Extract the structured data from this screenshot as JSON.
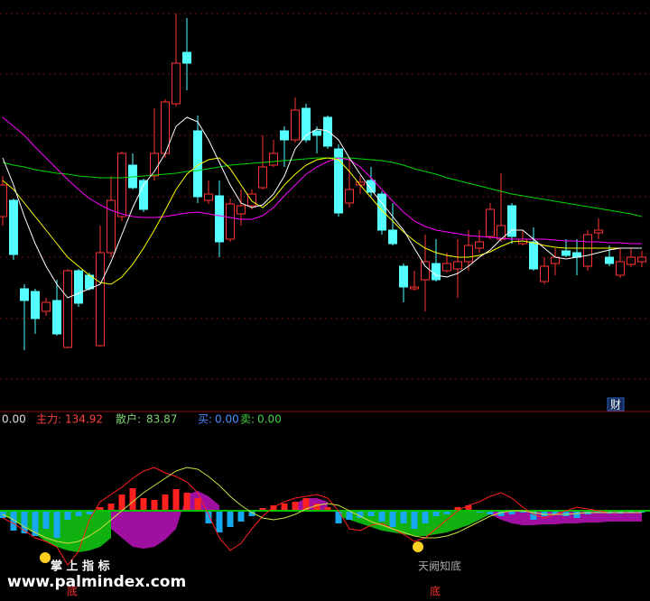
{
  "chart_data": [
    {
      "type": "candlestick",
      "ylim": [
        0,
        455
      ],
      "up_color": "#ff3232",
      "down_color": "#54ffff",
      "open": [
        215,
        233,
        135,
        132,
        110,
        122,
        70,
        155,
        150,
        72,
        175,
        215,
        272,
        255,
        260,
        285,
        340,
        397,
        310,
        233,
        238,
        190,
        218,
        227,
        247,
        272,
        310,
        300,
        335,
        310,
        325,
        290,
        230,
        250,
        255,
        240,
        200,
        160,
        135,
        145,
        163,
        155,
        157,
        165,
        180,
        193,
        190,
        227,
        185,
        187,
        143,
        163,
        177,
        175,
        160,
        197,
        170,
        150,
        162,
        165
      ],
      "high": [
        260,
        235,
        140,
        135,
        125,
        145,
        157,
        157,
        153,
        205,
        260,
        287,
        285,
        257,
        335,
        345,
        440,
        435,
        327,
        255,
        255,
        235,
        245,
        245,
        305,
        300,
        315,
        347,
        340,
        315,
        327,
        295,
        280,
        260,
        270,
        243,
        230,
        163,
        155,
        195,
        190,
        175,
        190,
        200,
        200,
        230,
        263,
        230,
        200,
        203,
        170,
        180,
        190,
        190,
        200,
        213,
        183,
        180,
        180,
        177
      ],
      "low": [
        205,
        167,
        67,
        85,
        105,
        83,
        69,
        115,
        133,
        71,
        170,
        210,
        245,
        220,
        255,
        280,
        337,
        355,
        230,
        229,
        170,
        187,
        205,
        223,
        245,
        270,
        270,
        297,
        297,
        285,
        290,
        215,
        225,
        240,
        237,
        195,
        183,
        120,
        133,
        110,
        143,
        153,
        125,
        155,
        175,
        190,
        187,
        185,
        183,
        155,
        140,
        150,
        170,
        150,
        155,
        190,
        160,
        147,
        159,
        159
      ],
      "close": [
        250,
        173,
        122,
        102,
        120,
        85,
        155,
        119,
        135,
        175,
        233,
        285,
        247,
        223,
        285,
        342,
        385,
        385,
        237,
        240,
        187,
        229,
        227,
        240,
        270,
        285,
        300,
        333,
        300,
        305,
        293,
        219,
        245,
        253,
        242,
        200,
        185,
        137,
        137,
        165,
        145,
        163,
        165,
        183,
        187,
        223,
        205,
        193,
        190,
        157,
        160,
        170,
        172,
        170,
        195,
        200,
        163,
        165,
        170,
        170
      ],
      "series": [
        {
          "color": "#00d800",
          "values": [
            275,
            272,
            270,
            267,
            265,
            263,
            262,
            260,
            259,
            258,
            258,
            258,
            259,
            260,
            261,
            262,
            263,
            265,
            266,
            268,
            270,
            272,
            273,
            274,
            275,
            276,
            277,
            278,
            279,
            280,
            280,
            280,
            280,
            279,
            278,
            277,
            275,
            272,
            268,
            265,
            262,
            258,
            255,
            252,
            249,
            246,
            243,
            240,
            238,
            236,
            234,
            232,
            230,
            228,
            226,
            224,
            222,
            220,
            218,
            215
          ]
        },
        {
          "color": "#ff00ff",
          "values": [
            325,
            315,
            305,
            292,
            280,
            268,
            256,
            245,
            235,
            228,
            222,
            218,
            215,
            214,
            214,
            215,
            217,
            219,
            220,
            218,
            216,
            214,
            212,
            212,
            216,
            225,
            238,
            250,
            262,
            270,
            276,
            280,
            278,
            270,
            258,
            245,
            232,
            220,
            210,
            204,
            200,
            198,
            196,
            194,
            193,
            192,
            191,
            190,
            190,
            190,
            190,
            189,
            188,
            188,
            187,
            187,
            186,
            186,
            185,
            185
          ]
        },
        {
          "color": "#ffff00",
          "values": [
            255,
            245,
            230,
            215,
            200,
            185,
            170,
            160,
            150,
            142,
            140,
            148,
            162,
            180,
            200,
            222,
            245,
            262,
            272,
            278,
            280,
            268,
            250,
            232,
            225,
            235,
            250,
            262,
            272,
            278,
            280,
            278,
            265,
            250,
            236,
            222,
            210,
            198,
            188,
            180,
            175,
            172,
            170,
            170,
            172,
            176,
            182,
            187,
            188,
            186,
            183,
            181,
            180,
            180,
            180,
            180,
            180,
            180,
            180,
            180
          ]
        },
        {
          "color": "#ffffff",
          "values": [
            280,
            250,
            215,
            185,
            160,
            140,
            125,
            130,
            135,
            140,
            165,
            195,
            225,
            250,
            265,
            285,
            315,
            325,
            320,
            300,
            275,
            250,
            230,
            225,
            228,
            240,
            260,
            290,
            305,
            312,
            310,
            300,
            280,
            262,
            245,
            230,
            215,
            200,
            180,
            160,
            150,
            148,
            152,
            160,
            170,
            178,
            190,
            200,
            200,
            190,
            180,
            170,
            168,
            170,
            172,
            175,
            178,
            180,
            180,
            180
          ]
        }
      ]
    },
    {
      "type": "bar",
      "ylim": [
        -80,
        60
      ],
      "pos_color": "#ff2020",
      "neg_color": "#18a8f0",
      "zero_color": "#00c000",
      "values": [
        -8,
        -22,
        -25,
        -28,
        -20,
        -30,
        -10,
        -6,
        -4,
        4,
        8,
        18,
        25,
        14,
        12,
        18,
        24,
        20,
        14,
        -14,
        -24,
        -18,
        -12,
        -6,
        3,
        6,
        8,
        10,
        14,
        8,
        4,
        -14,
        -10,
        -8,
        -6,
        -12,
        -18,
        -14,
        -20,
        -14,
        -6,
        -4,
        4,
        6,
        -2,
        -4,
        -6,
        -4,
        -2,
        -10,
        -6,
        -4,
        -6,
        -8,
        -4,
        -2,
        -3,
        -3,
        -2,
        -2
      ],
      "areas": [
        {
          "color": "#10b010",
          "values": [
            -4,
            -10,
            -18,
            -26,
            -34,
            -40,
            -44,
            -46,
            -44,
            -40,
            -30,
            null,
            null,
            null,
            null,
            null,
            null,
            null,
            null,
            null,
            null,
            null,
            null,
            null,
            null,
            null,
            null,
            null,
            null,
            null,
            null,
            -6,
            -10,
            -14,
            -18,
            -22,
            -24,
            -26,
            -28,
            -28,
            -26,
            -24,
            -20,
            -16,
            -10,
            -4,
            null,
            null,
            null,
            null,
            null,
            null,
            null,
            null,
            null,
            null,
            null,
            null,
            null,
            null
          ]
        },
        {
          "color": "#a010a0",
          "values": [
            null,
            null,
            null,
            null,
            null,
            null,
            null,
            null,
            null,
            null,
            -20,
            -30,
            -40,
            -42,
            -40,
            -32,
            -20,
            18,
            22,
            16,
            6,
            null,
            null,
            null,
            null,
            null,
            null,
            8,
            14,
            14,
            10,
            null,
            null,
            null,
            null,
            null,
            null,
            null,
            null,
            null,
            null,
            null,
            null,
            null,
            null,
            -4,
            -10,
            -14,
            -16,
            -16,
            -15,
            -15,
            -14,
            -14,
            -13,
            -13,
            -12,
            -12,
            -12,
            -12
          ]
        }
      ],
      "series": [
        {
          "color": "#ff2020",
          "values": [
            -8,
            -14,
            -22,
            -30,
            -34,
            -40,
            -60,
            -45,
            -10,
            10,
            18,
            26,
            36,
            44,
            48,
            42,
            38,
            32,
            20,
            -4,
            -30,
            -44,
            -36,
            -20,
            -6,
            4,
            10,
            14,
            16,
            18,
            14,
            0,
            -20,
            -22,
            -16,
            -14,
            -20,
            -26,
            -34,
            -30,
            -20,
            -10,
            0,
            6,
            10,
            16,
            20,
            14,
            4,
            -4,
            -8,
            -4,
            0,
            4,
            2,
            0,
            -2,
            -2,
            -2,
            -2
          ]
        },
        {
          "color": "#c8e040",
          "values": [
            -4,
            -10,
            -18,
            -24,
            -30,
            -34,
            -36,
            -34,
            -28,
            -20,
            -10,
            0,
            10,
            20,
            28,
            36,
            44,
            48,
            46,
            38,
            28,
            16,
            6,
            -2,
            -8,
            -10,
            -8,
            -4,
            2,
            6,
            8,
            6,
            0,
            -6,
            -12,
            -16,
            -20,
            -24,
            -28,
            -30,
            -30,
            -28,
            -24,
            -18,
            -12,
            -6,
            -2,
            0,
            0,
            -2,
            -4,
            -4,
            -4,
            -3,
            -2,
            -2,
            -2,
            -2,
            -2,
            -2
          ]
        }
      ]
    }
  ],
  "indicator_bar": {
    "lead": "0.00",
    "main_label": "主力:",
    "main_value": "134.92",
    "retail_label": "散户:",
    "retail_value": "83.87",
    "buy_label": "买:",
    "buy_value": "0.00",
    "sell_label": "卖:",
    "sell_value": "0.00"
  },
  "badge": "财",
  "annotations": {
    "brand": "掌 上 指 标",
    "site": "www.palmindex.com",
    "signal_text": "天阙知底",
    "bottom_1": "底",
    "bottom_2": "底"
  }
}
